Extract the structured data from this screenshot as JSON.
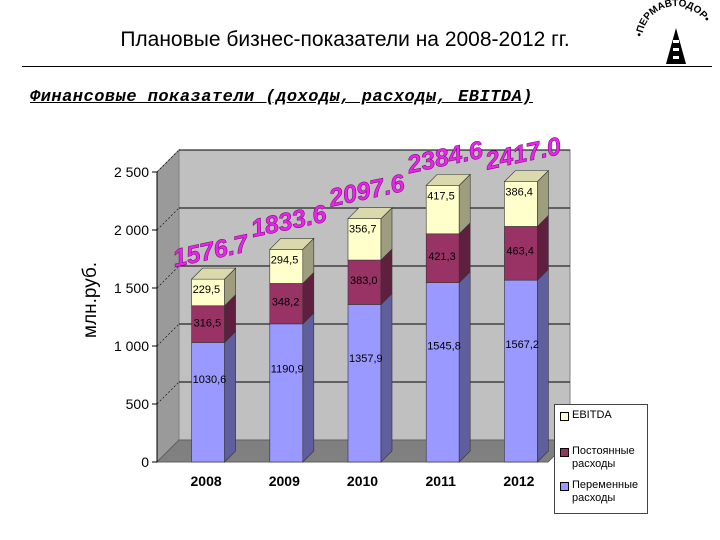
{
  "header": {
    "title": "Плановые бизнес-показатели на 2008-2012 гг.",
    "subtitle": "Финансовые показатели (доходы, расходы, EBITDA)",
    "logo_text": "•ПЕРМАВТОДОР•"
  },
  "colors": {
    "variable": "#9999ff",
    "fixed": "#993366",
    "ebitda": "#ffffcc",
    "total_label": "#ee22ee",
    "wall": "#c0c0c0"
  },
  "chart_data": {
    "type": "bar",
    "stacked": true,
    "three_d": true,
    "categories": [
      "2008",
      "2009",
      "2010",
      "2011",
      "2012"
    ],
    "ylabel": "млн.руб.",
    "ylim": [
      0,
      2500
    ],
    "yticks": [
      0,
      500,
      1000,
      1500,
      2000,
      2500
    ],
    "ytick_labels": [
      "0",
      "500",
      "1 000",
      "1 500",
      "2 000",
      "2 500"
    ],
    "grid": true,
    "legend_position": "bottom-right",
    "series": [
      {
        "name": "Переменные расходы",
        "values": [
          1030.6,
          1190.9,
          1357.9,
          1545.8,
          1567.2
        ],
        "labels": [
          "1030,6",
          "1190,9",
          "1357,9",
          "1545,8",
          "1567,2"
        ]
      },
      {
        "name": "Постоянные расходы",
        "values": [
          316.5,
          348.2,
          383.0,
          421.3,
          463.4
        ],
        "labels": [
          "316,5",
          "348,2",
          "383,0",
          "421,3",
          "463,4"
        ]
      },
      {
        "name": "EBITDA",
        "values": [
          229.5,
          294.5,
          356.7,
          417.5,
          386.4
        ],
        "labels": [
          "229,5",
          "294,5",
          "356,7",
          "417,5",
          "386,4"
        ]
      }
    ],
    "totals": [
      "1576.7",
      "1833.6",
      "2097.6",
      "2384.6",
      "2417.0"
    ],
    "total_values": [
      1576.7,
      1833.6,
      2097.6,
      2384.6,
      2417.0
    ]
  }
}
